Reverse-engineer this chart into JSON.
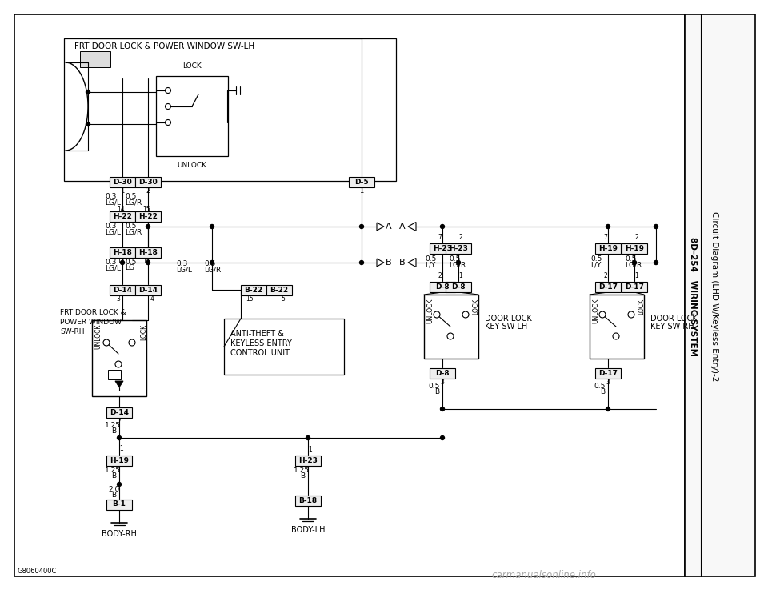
{
  "bg_color": "#ffffff",
  "border_color": "#000000",
  "line_color": "#000000",
  "text_color": "#000000",
  "title_right1": "8D–254   WIRING SYSTEM",
  "title_right2": "Circuit Diagram (LHD W/Keyless Entry)-2",
  "watermark": "carmanualsonline.info",
  "code": "G8060400C"
}
